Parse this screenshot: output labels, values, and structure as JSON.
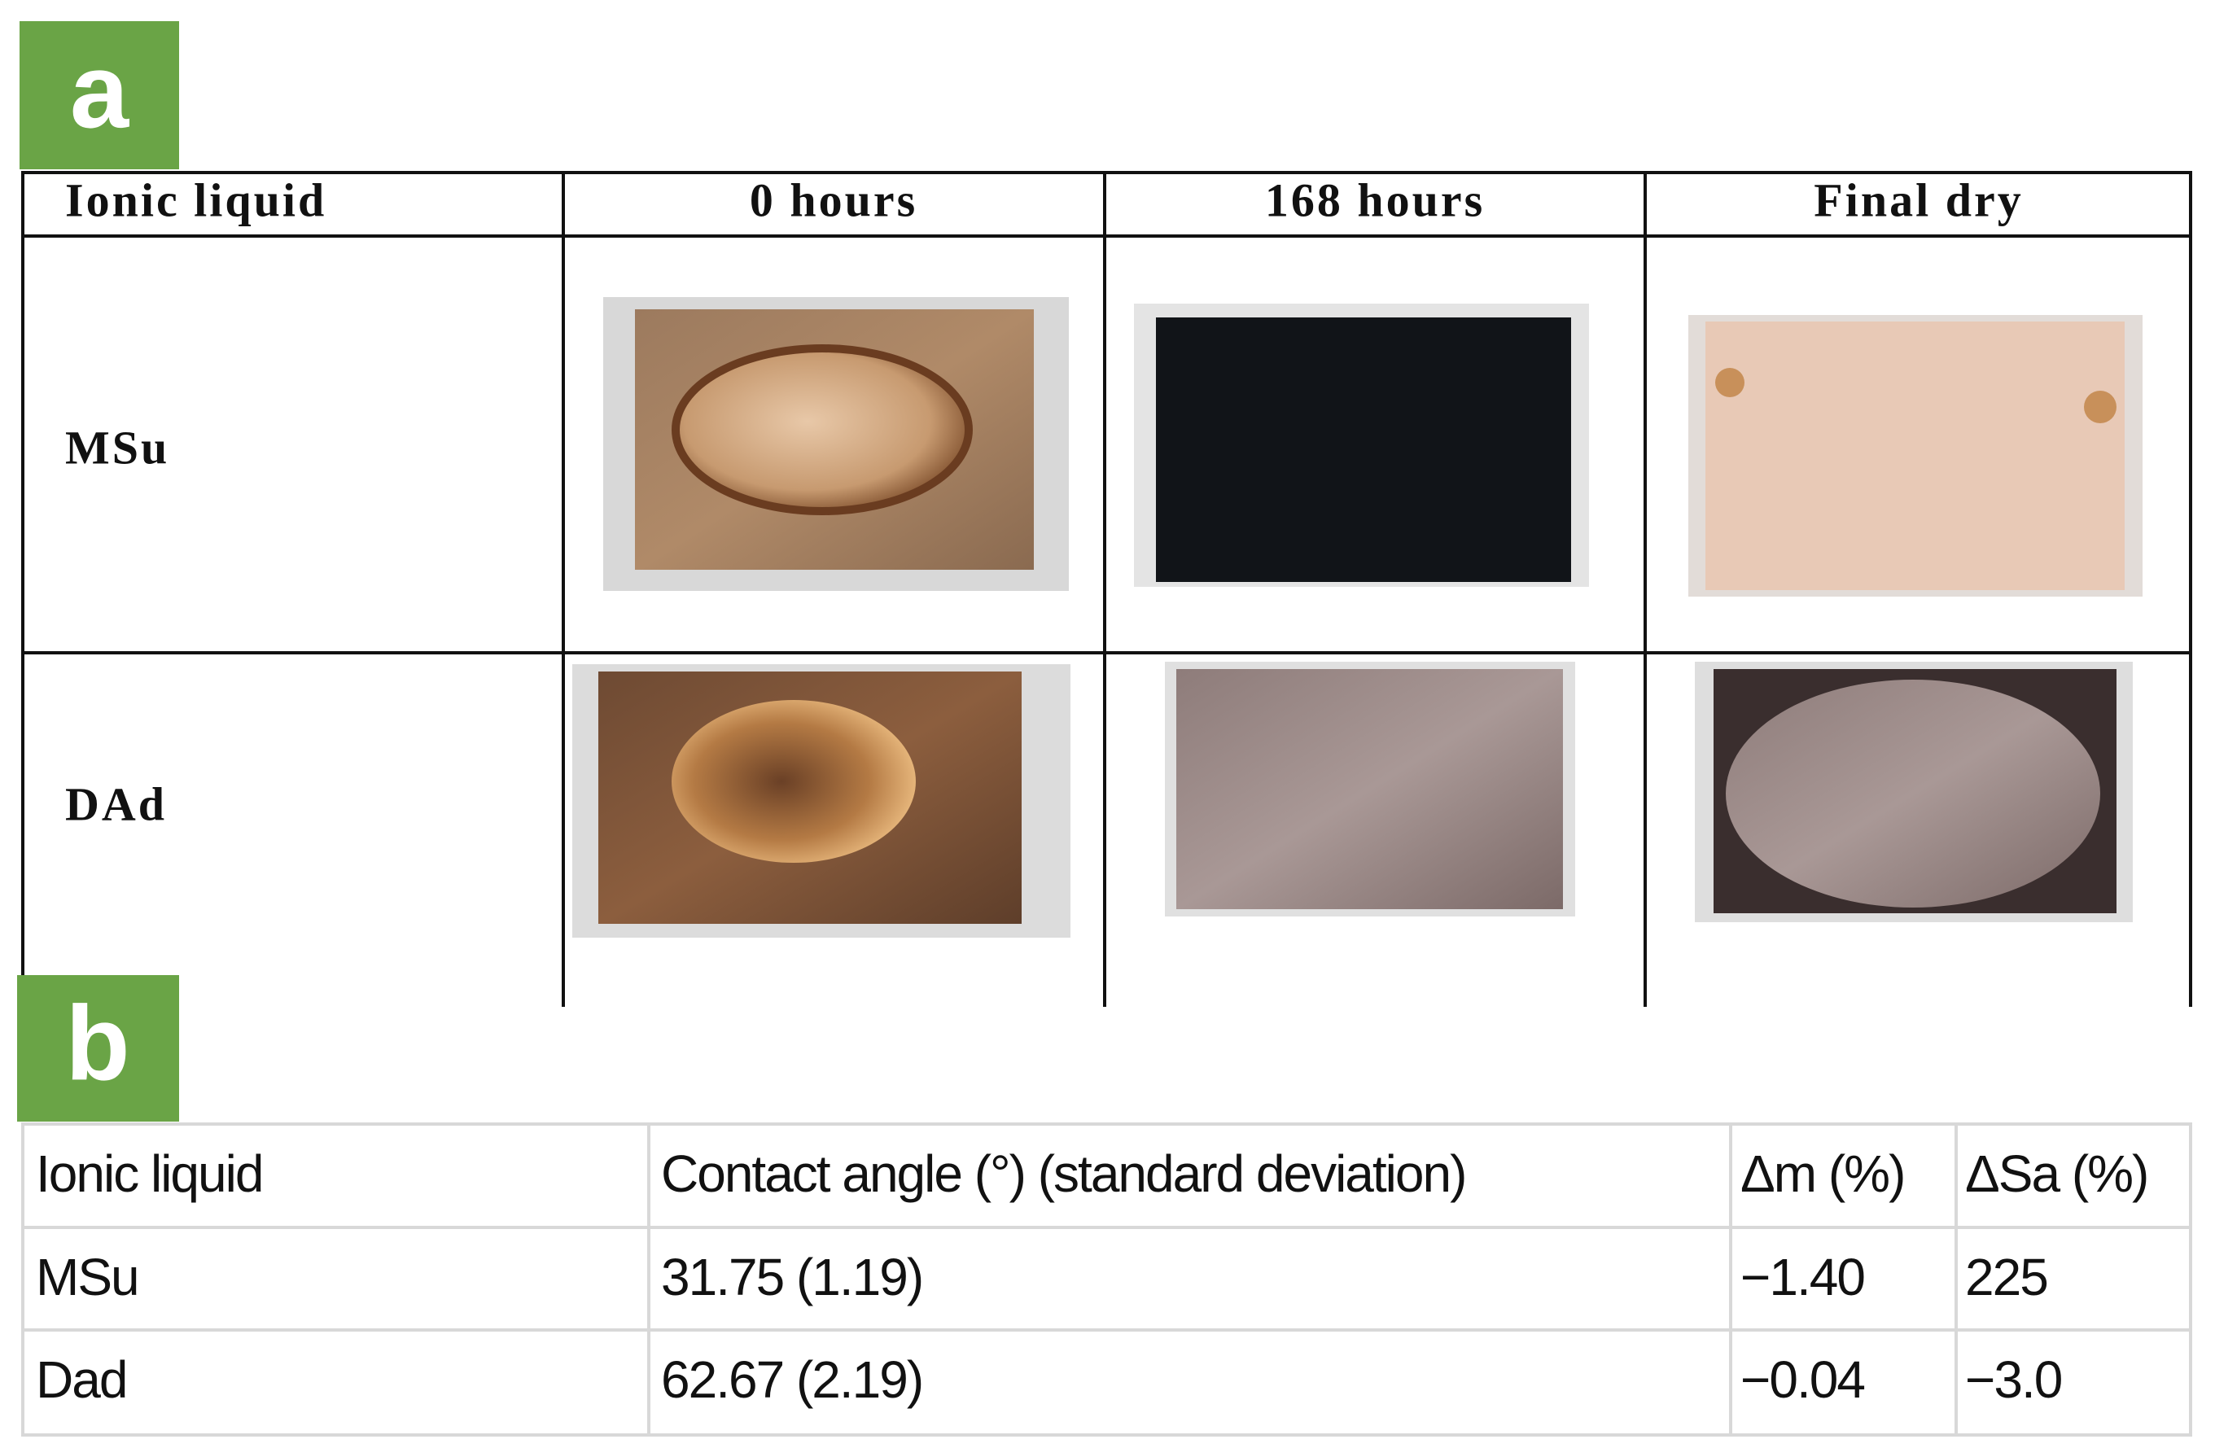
{
  "panel_a": {
    "label": "a",
    "table": {
      "header": [
        "Ionic liquid",
        "0 hours",
        "168 hours",
        "Final dry"
      ],
      "row_labels": [
        "MSu",
        "DAd"
      ]
    }
  },
  "panel_b": {
    "label": "b",
    "table": {
      "header": [
        "Ionic liquid",
        "Contact angle (°) (standard deviation)",
        "Δm (%)",
        "ΔSa (%)"
      ],
      "rows": [
        [
          "MSu",
          "31.75 (1.19)",
          "−1.40",
          "225"
        ],
        [
          "Dad",
          "62.67 (2.19)",
          "−0.04",
          "−3.0"
        ]
      ]
    }
  }
}
